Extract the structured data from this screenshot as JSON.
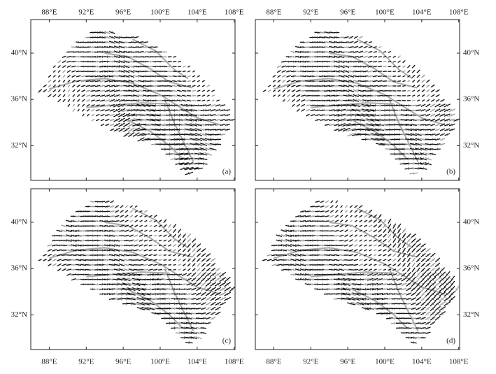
{
  "map": {
    "xlim": [
      86,
      108.1
    ],
    "ylim": [
      29,
      42.9
    ],
    "xticks": [
      {
        "value": 88,
        "label": "88°E"
      },
      {
        "value": 92,
        "label": "92°E"
      },
      {
        "value": 96,
        "label": "96°E"
      },
      {
        "value": 100,
        "label": "100°E"
      },
      {
        "value": 104,
        "label": "104°E"
      },
      {
        "value": 108,
        "label": "108°E"
      }
    ],
    "yticks": [
      {
        "value": 32,
        "label": "32°N"
      },
      {
        "value": 36,
        "label": "36°N"
      },
      {
        "value": 40,
        "label": "40°N"
      }
    ],
    "panels": [
      {
        "label": "(a)"
      },
      {
        "label": "(b)"
      },
      {
        "label": "(c)"
      },
      {
        "label": "(d)"
      }
    ]
  }
}
